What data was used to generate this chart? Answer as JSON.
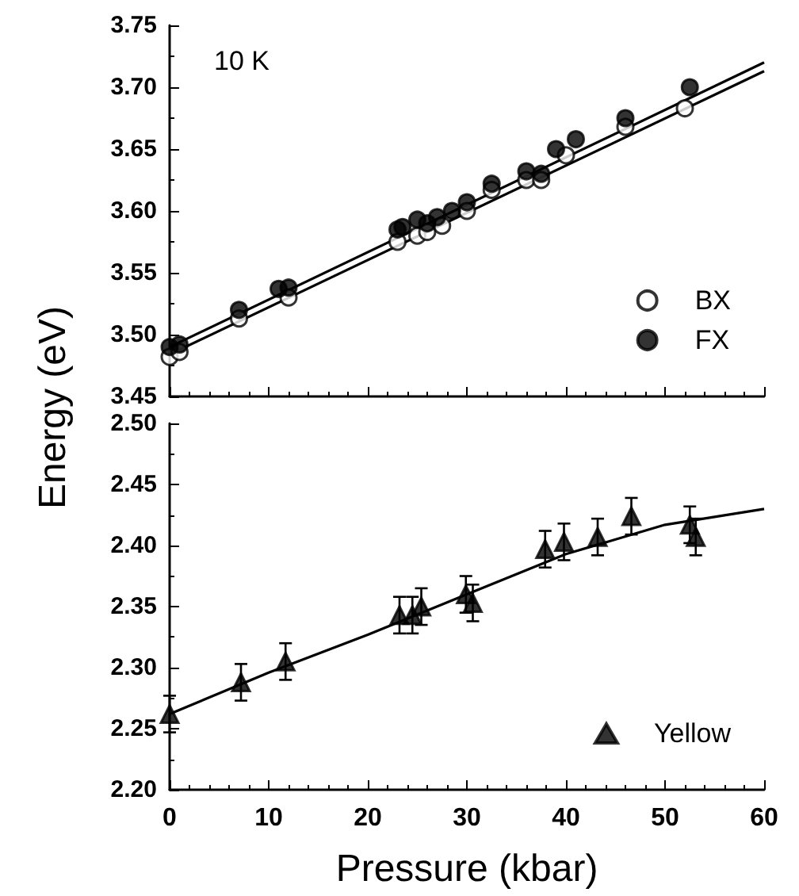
{
  "chart_data": [
    {
      "type": "scatter",
      "ylabel": "Energy (eV)",
      "annotations": [
        "10 K"
      ],
      "xlim": [
        0,
        60
      ],
      "xticks": [
        0,
        10,
        20,
        30,
        40,
        50,
        60
      ],
      "ylim": [
        3.45,
        3.75
      ],
      "yticks": [
        3.45,
        {
          "value": 3.5,
          "label": "3.50"
        },
        3.55,
        {
          "value": 3.6,
          "label": "3.60"
        },
        3.65,
        {
          "value": 3.7,
          "label": "3.70"
        },
        3.75
      ],
      "tick_labels": "y",
      "grid": false,
      "legend": "bottom right",
      "series": [
        {
          "name": "BX",
          "color": "#ffffff",
          "marker": "circle",
          "x": [
            0,
            1,
            7,
            12,
            23,
            25,
            26,
            27.5,
            30,
            32.5,
            36,
            37.5,
            40,
            46,
            52
          ],
          "values": [
            3.482,
            3.486,
            3.513,
            3.53,
            3.575,
            3.58,
            3.583,
            3.588,
            3.6,
            3.617,
            3.625,
            3.625,
            3.645,
            3.668,
            3.683
          ]
        },
        {
          "name": "FX",
          "color": "#000000",
          "marker": "circle",
          "x": [
            0,
            1,
            7,
            11,
            12,
            23,
            23.5,
            25,
            26,
            27,
            28.5,
            30,
            32.5,
            36,
            37.5,
            39,
            41,
            46,
            52.5
          ],
          "values": [
            3.49,
            3.492,
            3.52,
            3.537,
            3.538,
            3.585,
            3.587,
            3.593,
            3.59,
            3.595,
            3.6,
            3.607,
            3.622,
            3.632,
            3.63,
            3.65,
            3.658,
            3.675,
            3.7
          ]
        },
        {
          "type": "line",
          "color": "#000000",
          "marker": "none",
          "x": [
            0,
            60
          ],
          "values": [
            3.484,
            3.713
          ]
        },
        {
          "type": "line",
          "color": "#000000",
          "marker": "none",
          "x": [
            0,
            60
          ],
          "values": [
            3.49,
            3.72
          ]
        }
      ]
    },
    {
      "type": "scatter",
      "xlabel": "Pressure (kbar)",
      "xlim": [
        0,
        60
      ],
      "xticks": [
        0,
        10,
        20,
        30,
        40,
        50,
        60
      ],
      "ylim": [
        2.2,
        2.5
      ],
      "yticks": [
        {
          "value": 2.2,
          "label": "2.20"
        },
        2.25,
        {
          "value": 2.3,
          "label": "2.30"
        },
        2.35,
        {
          "value": 2.4,
          "label": "2.40"
        },
        2.45,
        {
          "value": 2.5,
          "label": "2.50"
        }
      ],
      "grid": false,
      "legend": "bottom right",
      "series": [
        {
          "name": "Yellow",
          "color": "#000000",
          "marker": "triangle",
          "x": [
            0,
            7.2,
            11.7,
            23.2,
            24.5,
            25.4,
            29.9,
            30.6,
            37.9,
            39.8,
            43.2,
            46.6,
            52.5,
            53.1
          ],
          "values": [
            2.262,
            2.288,
            2.305,
            2.343,
            2.343,
            2.35,
            2.36,
            2.353,
            2.397,
            2.403,
            2.407,
            2.424,
            2.417,
            2.407
          ],
          "errors": [
            0.015,
            0.015,
            0.015,
            0.015,
            0.015,
            0.015,
            0.015,
            0.015,
            0.015,
            0.015,
            0.015,
            0.015,
            0.015,
            0.015
          ]
        },
        {
          "type": "line",
          "color": "#000000",
          "marker": "none",
          "x": [
            0,
            10,
            20,
            30,
            40,
            50,
            60
          ],
          "values": [
            2.262,
            2.296,
            2.327,
            2.36,
            2.393,
            2.417,
            2.43
          ]
        }
      ]
    }
  ]
}
